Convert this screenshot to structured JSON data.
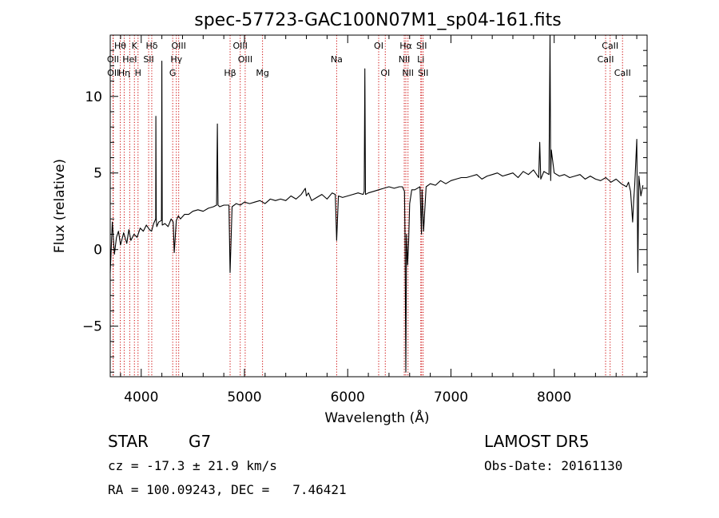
{
  "chart_data": {
    "type": "line",
    "title": "spec-57723-GAC100N07M1_sp04-161.fits",
    "xlabel": "Wavelength (Å)",
    "ylabel": "Flux (relative)",
    "xlim": [
      3700,
      8900
    ],
    "ylim": [
      -8.3,
      14.0
    ],
    "xticks": [
      4000,
      5000,
      6000,
      7000,
      8000
    ],
    "yticks": [
      -5,
      0,
      5,
      10
    ],
    "grid": false,
    "series": [
      {
        "x": [
          3700,
          3720,
          3740,
          3760,
          3780,
          3800,
          3830,
          3860,
          3880,
          3900,
          3930,
          3960,
          3990,
          4020,
          4050,
          4080,
          4100,
          4120,
          4140,
          4142,
          4146,
          4150,
          4170,
          4196,
          4200,
          4204,
          4230,
          4260,
          4290,
          4310,
          4320,
          4340,
          4360,
          4380,
          4420,
          4460,
          4500,
          4550,
          4600,
          4650,
          4700,
          4730,
          4738,
          4744,
          4760,
          4800,
          4850,
          4861,
          4880,
          4920,
          4960,
          5000,
          5050,
          5100,
          5150,
          5200,
          5250,
          5300,
          5350,
          5400,
          5450,
          5500,
          5550,
          5590,
          5600,
          5620,
          5650,
          5700,
          5750,
          5800,
          5850,
          5880,
          5893,
          5910,
          5950,
          6000,
          6050,
          6100,
          6150,
          6160,
          6166,
          6172,
          6200,
          6250,
          6300,
          6350,
          6400,
          6450,
          6500,
          6530,
          6550,
          6555,
          6563,
          6570,
          6580,
          6590,
          6600,
          6620,
          6650,
          6700,
          6715,
          6720,
          6735,
          6760,
          6800,
          6850,
          6900,
          6950,
          7000,
          7050,
          7100,
          7150,
          7200,
          7250,
          7300,
          7350,
          7400,
          7450,
          7500,
          7550,
          7600,
          7650,
          7700,
          7750,
          7800,
          7850,
          7860,
          7870,
          7900,
          7950,
          7960,
          7966,
          7972,
          8000,
          8050,
          8100,
          8150,
          8200,
          8250,
          8300,
          8350,
          8400,
          8450,
          8500,
          8550,
          8600,
          8650,
          8700,
          8720,
          8740,
          8760,
          8770,
          8780,
          8800,
          8810,
          8820,
          8840,
          8860
        ],
        "y": [
          -1.5,
          1.8,
          -0.3,
          0.8,
          1.2,
          0.3,
          1.1,
          0.4,
          1.3,
          0.6,
          1.0,
          0.8,
          1.4,
          1.2,
          1.6,
          1.3,
          1.2,
          1.7,
          2.0,
          8.7,
          2.0,
          1.5,
          1.8,
          1.9,
          12.3,
          1.6,
          1.7,
          1.5,
          2.0,
          1.8,
          -0.2,
          1.9,
          2.2,
          2.0,
          2.3,
          2.3,
          2.5,
          2.6,
          2.5,
          2.7,
          2.8,
          2.9,
          8.2,
          2.9,
          2.8,
          2.9,
          2.9,
          -1.5,
          2.8,
          3.0,
          2.9,
          3.1,
          3.0,
          3.1,
          3.2,
          3.0,
          3.3,
          3.2,
          3.3,
          3.2,
          3.5,
          3.3,
          3.6,
          4.0,
          3.5,
          3.7,
          3.2,
          3.4,
          3.6,
          3.3,
          3.7,
          3.6,
          0.6,
          3.5,
          3.4,
          3.5,
          3.6,
          3.7,
          3.6,
          3.8,
          11.8,
          3.6,
          3.7,
          3.8,
          3.9,
          4.0,
          4.1,
          4.0,
          4.1,
          4.1,
          3.8,
          0.8,
          -8.0,
          1.0,
          -1.0,
          0.5,
          3.0,
          3.9,
          3.9,
          4.1,
          1.0,
          3.9,
          1.2,
          4.1,
          4.3,
          4.2,
          4.5,
          4.3,
          4.5,
          4.6,
          4.7,
          4.7,
          4.8,
          4.9,
          4.6,
          4.8,
          4.9,
          5.0,
          4.8,
          4.9,
          5.0,
          4.7,
          5.1,
          4.9,
          5.2,
          4.7,
          7.0,
          4.6,
          5.1,
          4.9,
          14.0,
          4.5,
          6.5,
          5.0,
          4.8,
          4.9,
          4.7,
          4.8,
          4.9,
          4.6,
          4.8,
          4.6,
          4.5,
          4.7,
          4.4,
          4.6,
          4.3,
          4.1,
          4.4,
          3.8,
          1.8,
          3.2,
          4.2,
          7.2,
          -1.5,
          4.8,
          3.5,
          4.2
        ]
      }
    ],
    "lines_color": "#cc0000",
    "spectral_lines": [
      {
        "label": "Hθ",
        "x": 3797,
        "row": 0
      },
      {
        "label": "K",
        "x": 3934,
        "row": 0
      },
      {
        "label": "Hδ",
        "x": 4102,
        "row": 0
      },
      {
        "label": "OIII",
        "x": 4363,
        "row": 0
      },
      {
        "label": "OIII",
        "x": 4959,
        "row": 0
      },
      {
        "label": "OI",
        "x": 6300,
        "row": 0
      },
      {
        "label": "Hα",
        "x": 6563,
        "row": 0
      },
      {
        "label": "SII",
        "x": 6716,
        "row": 0
      },
      {
        "label": "CaII",
        "x": 8542,
        "row": 0
      },
      {
        "label": "OII",
        "x": 3727,
        "row": 1
      },
      {
        "label": "HeI",
        "x": 3889,
        "row": 1
      },
      {
        "label": "SII",
        "x": 4072,
        "row": 1
      },
      {
        "label": "Hγ",
        "x": 4340,
        "row": 1
      },
      {
        "label": "OIII",
        "x": 5007,
        "row": 1
      },
      {
        "label": "Na",
        "x": 5893,
        "row": 1
      },
      {
        "label": "NII",
        "x": 6548,
        "row": 1
      },
      {
        "label": "Li",
        "x": 6708,
        "row": 1
      },
      {
        "label": "CaII",
        "x": 8498,
        "row": 1
      },
      {
        "label": "OII",
        "x": 3729,
        "row": 2
      },
      {
        "label": "Hη",
        "x": 3835,
        "row": 2
      },
      {
        "label": "H",
        "x": 3969,
        "row": 2
      },
      {
        "label": "G",
        "x": 4305,
        "row": 2
      },
      {
        "label": "Hβ",
        "x": 4861,
        "row": 2
      },
      {
        "label": "Mg",
        "x": 5175,
        "row": 2
      },
      {
        "label": "OI",
        "x": 6364,
        "row": 2
      },
      {
        "label": "NII",
        "x": 6584,
        "row": 2
      },
      {
        "label": "SII",
        "x": 6731,
        "row": 2
      },
      {
        "label": "CaII",
        "x": 8662,
        "row": 2
      }
    ]
  },
  "info": {
    "object_class": "STAR",
    "subclass": "G7",
    "survey": "LAMOST DR5",
    "redshift": "cz = -17.3 ± 21.9 km/s",
    "obs_date": "Obs-Date: 20161130",
    "coords": "RA = 100.09243, DEC =   7.46421"
  }
}
